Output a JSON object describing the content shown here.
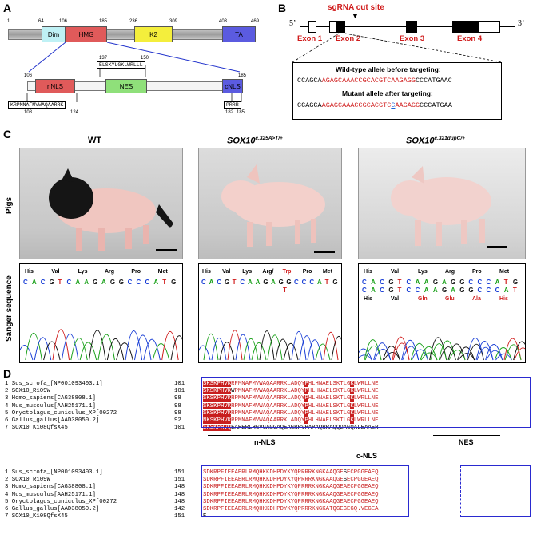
{
  "panels": {
    "A": {
      "letter": "A",
      "ticks": [
        "1",
        "64",
        "106",
        "185",
        "236",
        "309",
        "403",
        "469"
      ],
      "domains": {
        "dim": "Dim",
        "hmg": "HMG",
        "k2": "K2",
        "ta": "TA"
      },
      "sub_ticks": [
        "106",
        "185"
      ],
      "nes_pos": [
        "137",
        "150"
      ],
      "nes_seq": "ELSKYLGKLWRLLL",
      "sub_domains": {
        "nnls": "nNLS",
        "nes": "NES",
        "cnls": "cNLS"
      },
      "nnls_seq": "KRPMNAFMVWAQAARRK",
      "nnls_pos": [
        "108",
        "124"
      ],
      "cnls_seq": "PRRR",
      "cnls_pos": [
        "182",
        "185"
      ]
    },
    "B": {
      "letter": "B",
      "cut_label": "sgRNA cut site",
      "five": "5’",
      "three": "3’",
      "exons": [
        "Exon 1",
        "Exon 2",
        "Exon 3",
        "Exon 4"
      ],
      "wt_title": "Wild-type allele before targeting:",
      "wt_pre": "CCAGCA",
      "wt_red": "AGAGCAAACCGCACGTCAAGAGG",
      "wt_post": "CCCATGAAC",
      "mut_title": "Mutant allele after targeting:",
      "mut_pre": "CCAGCA",
      "mut_red1": "AGAGCAAACCGCACGTC",
      "mut_blue": "C",
      "mut_red2": "AAGAGG",
      "mut_post": "CCCATGAA"
    },
    "C": {
      "letter": "C",
      "titles": {
        "wt": "WT",
        "m1_base": "SOX10",
        "m1_sup": "c.325A>T/+",
        "m2_base": "SOX10",
        "m2_sup": "c.321dupC/+"
      },
      "row_labels": {
        "pigs": "Pigs",
        "sanger": "Sanger sequence"
      },
      "wt_codons": [
        "His",
        "Val",
        "Lys",
        "Arg",
        "Pro",
        "Met"
      ],
      "wt_nucs": "CACGTCAAGAGGCCCATG",
      "m1_codons": [
        "His",
        "Val",
        "Lys",
        "Arg/",
        "Trp",
        "Pro",
        "Met"
      ],
      "m1_nucs": "CACGTCAAGAGGCCCATG",
      "m1_alt": "T",
      "m2_codons": [
        "His",
        "Val",
        "Lys",
        "Arg",
        "Pro",
        "Met"
      ],
      "m2_nucs_top": "CACGTCAAGAGGCCCATG",
      "m2_nucs_bot": "CACGTCCAAGAGGCCCAT",
      "m2_codons_bot": [
        "His",
        "Val",
        "Gln",
        "Glu",
        "Ala",
        "His"
      ]
    },
    "D": {
      "letter": "D",
      "block1": {
        "names": [
          "1 Sus_scrofa_[NP001093403.1]",
          "2 SOX10_R109W",
          "3 Homo_sapiens[CAG38808.1]",
          "4 Mus_musculus[AAH25171.1]",
          "5 Oryctolagus_cuniculus_XP[00272",
          "6 Gallus_gallus[AAD38050.2]",
          "7 SOX10_K108QfsX45"
        ],
        "starts": [
          "101",
          "101",
          "98",
          "98",
          "98",
          "92",
          "101"
        ],
        "seqs": [
          "SKSKPHVKRPMNAFMVWAQAARRKLADQYPHLHNAELSKTLGKLWRLLNE",
          "SKSKPHVKWPMNAFMVWAQAARRKLADQYPHLHNAELSKTLGKLWRLLNE",
          "SKSKPHVKRPMNAFMVWAQAARRKLADQYPHLHNAELSKTLGKLWRLLNE",
          "SKSKPHVKRPMNAFMVWAQAARRKLADQYPHLHNAELSKTLGKLWRLLNE",
          "SKSKPHVKRPMNAFMVWAQAARRKLADQYPHLHNAELSKTLGKLWRLLNE",
          "NKSKPHVKRPMNAFMVWAQAARRKLADQYPHLHNAELSKTLGKLWRLLNE",
          "SKSKPHVQEAHERLHGVGAGGAQEAGRPVPAPAQRRAQQDAGQALEAAER"
        ],
        "labels": {
          "nnls": "n-NLS",
          "nes": "NES"
        }
      },
      "block2": {
        "names": [
          "1 Sus_scrofa_[NP001093403.1]",
          "2 SOX10_R109W",
          "3 Homo_sapiens[CAG38808.1]",
          "4 Mus_musculus[AAH25171.1]",
          "5 Oryctolagus_cuniculus_XP[00272",
          "6 Gallus_gallus[AAD38050.2]",
          "7 SOX10_K108QfsX45"
        ],
        "starts": [
          "151",
          "151",
          "148",
          "148",
          "148",
          "142",
          "151"
        ],
        "seqs": [
          "SDKRPFIEEAERLRMQHKKDHPDYKYQPRRRKNGKAAQGESECPGGEAEQ",
          "SDKRPFIEEAERLRMQHKKDHPDYKYQPRRRKNGKAAQGESECPGGEAEQ",
          "SDKRPFIEEAERLRMQHKKDHPDYKYQPRRRKNGKAAQGEAECPGGEAEQ",
          "SDKRPFIEEAERLRMQHKKDHPDYKYQPRRRKNGKAAQGEAECPGGEAEQ",
          "SDKRPFIEEAERLRMQHKKDHPDYKYQPRRRKNGKAAQGEAECPGGEAEQ",
          "SDKRPFIEEAERLRMQHKKDHPDYKYQPRRRKNGKATQGEGEGQ.VEGEA",
          "E................................................."
        ],
        "labels": {
          "cnls": "c-NLS"
        }
      }
    }
  }
}
